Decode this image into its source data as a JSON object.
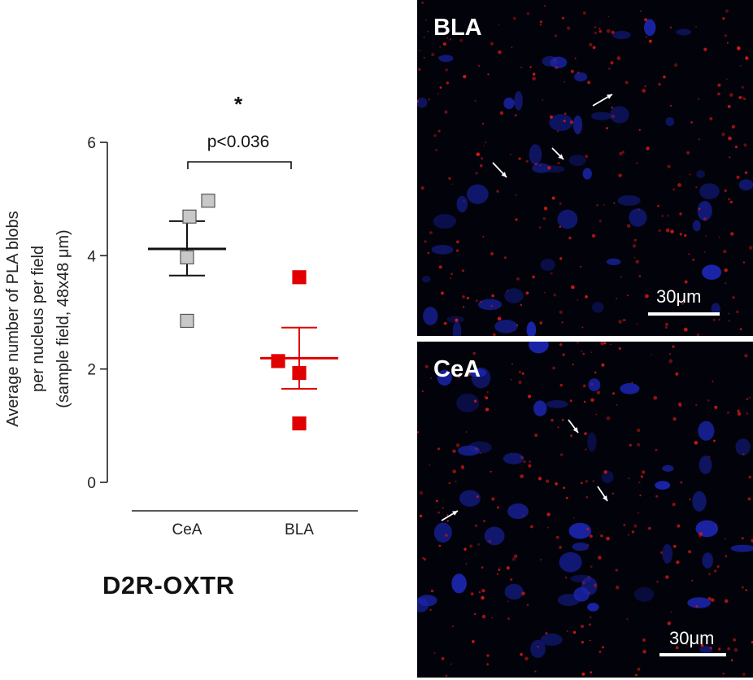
{
  "chart_data": {
    "type": "scatter",
    "ylabel_lines": [
      "Average number of PLA blobs",
      "per nucleus per field",
      "(sample field, 48x48 μm)"
    ],
    "categories": [
      "CeA",
      "BLA"
    ],
    "yticks": [
      0,
      2,
      4,
      6
    ],
    "ylim": [
      0,
      6
    ],
    "series": [
      {
        "category": "CeA",
        "color": "#c8c8c8",
        "points": [
          4.97,
          4.69,
          3.97,
          2.85
        ],
        "mean": 4.12,
        "sem_upper": 4.61,
        "sem_lower": 3.65
      },
      {
        "category": "BLA",
        "color": "#e00000",
        "points": [
          3.62,
          2.14,
          1.93,
          1.04
        ],
        "mean": 2.19,
        "sem_upper": 2.73,
        "sem_lower": 1.65
      }
    ],
    "significance": {
      "star": "*",
      "label": "p<0.036"
    }
  },
  "figure_label": "D2R-OXTR",
  "panels": [
    {
      "name": "BLA",
      "scalebar": "30μm"
    },
    {
      "name": "CeA",
      "scalebar": "30μm"
    }
  ]
}
